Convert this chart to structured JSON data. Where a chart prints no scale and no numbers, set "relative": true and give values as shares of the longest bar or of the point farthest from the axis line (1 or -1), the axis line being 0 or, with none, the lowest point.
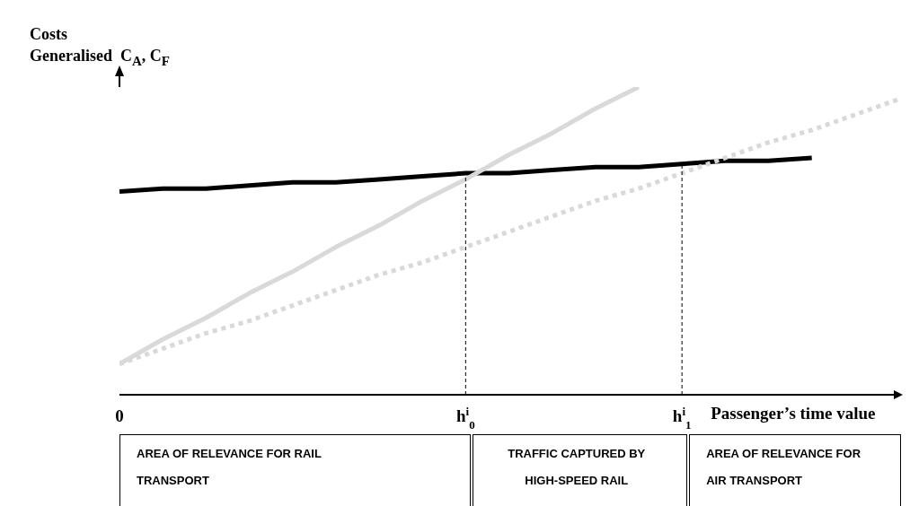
{
  "chart_data": {
    "type": "line",
    "relative": true,
    "ylabel": "Costs\nGeneralised  C$_{A}$, C$_{F}$",
    "xlabel": "Passenger’s time value",
    "categories": [
      "0",
      null,
      null,
      null,
      null,
      null,
      null,
      null,
      "h$^{i}$$_{0}$",
      null,
      null,
      null,
      null,
      "h$^{i}$$_{1}$",
      null,
      null,
      null,
      null,
      null
    ],
    "series": [
      {
        "color": "#000000",
        "values": [
          0.66,
          0.67,
          0.67,
          0.68,
          0.69,
          0.69,
          0.7,
          0.71,
          0.72,
          0.72,
          0.73,
          0.74,
          0.74,
          0.75,
          0.76,
          0.76,
          0.77,
          null,
          null
        ]
      },
      {
        "color": "#d9d9d9",
        "values": [
          0.1,
          0.18,
          0.25,
          0.33,
          0.4,
          0.48,
          0.55,
          0.63,
          0.7,
          0.78,
          0.85,
          0.93,
          1.0,
          null,
          null,
          null,
          null,
          null,
          null
        ]
      },
      {
        "color": "#d9d9d9",
        "line_style": "dotted",
        "values": [
          0.1,
          0.15,
          0.2,
          0.24,
          0.29,
          0.34,
          0.39,
          0.43,
          0.48,
          0.53,
          0.58,
          0.63,
          0.67,
          0.72,
          0.77,
          0.82,
          0.86,
          0.91,
          0.96
        ]
      }
    ],
    "ref_lines": [
      {
        "axis": "x",
        "value": "h$^{i}$$_{0}$",
        "line_style": "dashed",
        "color": "#000000"
      },
      {
        "axis": "x",
        "value": "h$^{i}$$_{1}$",
        "line_style": "dashed",
        "color": "#000000"
      }
    ],
    "annotations": [
      "AREA OF RELEVANCE FOR RAIL TRANSPORT",
      "TRAFFIC CAPTURED BY HIGH-SPEED RAIL",
      "AREA OF RELEVANCE FOR AIR TRANSPORT"
    ],
    "grid": false,
    "legend": false,
    "marker": "none"
  }
}
